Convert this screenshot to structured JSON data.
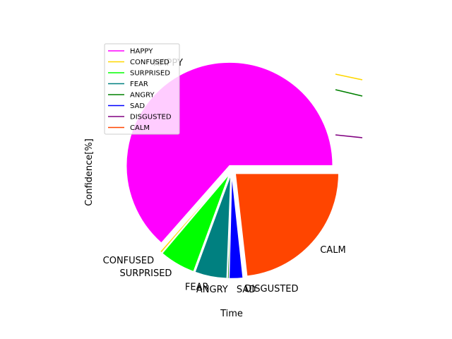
{
  "chart_data": {
    "type": "pie",
    "title": "",
    "xlabel": "Time",
    "ylabel": "Confidence[%]",
    "categories": [
      "HAPPY",
      "CONFUSED",
      "SURPRISED",
      "FEAR",
      "ANGRY",
      "SAD",
      "DISGUSTED",
      "CALM"
    ],
    "values": [
      63.5,
      0.3,
      5.6,
      5.0,
      0.2,
      2.1,
      0.1,
      23.2
    ],
    "colors": [
      "#ff00ff",
      "#ffd700",
      "#00ff00",
      "#008080",
      "#008000",
      "#0000ff",
      "#800080",
      "#ff4500"
    ],
    "legend": {
      "position": "upper-left",
      "entries": [
        "HAPPY",
        "CONFUSED",
        "SURPRISED",
        "FEAR",
        "ANGRY",
        "SAD",
        "DISGUSTED",
        "CALM"
      ]
    }
  }
}
